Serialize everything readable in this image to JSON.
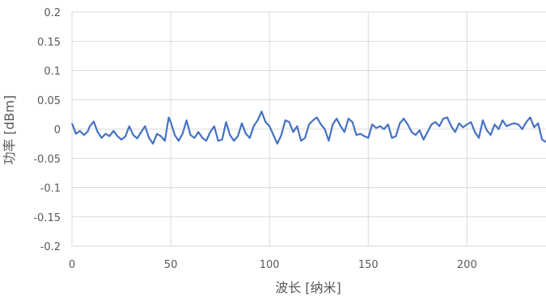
{
  "chart_data": {
    "type": "line",
    "xlabel": "波长 [纳米]",
    "ylabel": "功率 [dBm]",
    "xlim": [
      0,
      240
    ],
    "ylim": [
      -0.2,
      0.2
    ],
    "grid": true,
    "x_ticks": [
      0,
      50,
      100,
      150,
      200
    ],
    "x_tick_labels": [
      "0",
      "50",
      "100",
      "150",
      "200"
    ],
    "y_ticks": [
      0.2,
      0.15,
      0.1,
      0.05,
      0,
      -0.05,
      -0.1,
      -0.15,
      -0.2
    ],
    "y_tick_labels": [
      "0.2",
      "0.15",
      "0.1",
      "0.05",
      "0",
      "-0.05",
      "-0.1",
      "-0.15",
      "-0.2"
    ],
    "series": [
      {
        "color": "#4472c4",
        "x": [
          0,
          2,
          4,
          6,
          8,
          9,
          11,
          13,
          15,
          17,
          19,
          21,
          23,
          25,
          27,
          29,
          31,
          33,
          35,
          37,
          39,
          41,
          43,
          45,
          47,
          49,
          50,
          52,
          54,
          56,
          58,
          60,
          62,
          64,
          66,
          68,
          70,
          72,
          74,
          76,
          78,
          80,
          82,
          84,
          86,
          88,
          90,
          92,
          94,
          96,
          98,
          100,
          102,
          104,
          106,
          108,
          110,
          112,
          114,
          116,
          118,
          120,
          122,
          124,
          126,
          128,
          130,
          132,
          134,
          136,
          138,
          140,
          142,
          144,
          146,
          148,
          150,
          152,
          154,
          156,
          158,
          160,
          162,
          164,
          166,
          168,
          170,
          172,
          174,
          176,
          178,
          180,
          182,
          184,
          186,
          188,
          190,
          192,
          194,
          196,
          198,
          200,
          202,
          204,
          206,
          208,
          210,
          212,
          214,
          216,
          218,
          220,
          222,
          224,
          226,
          228,
          230,
          232,
          234,
          236,
          238,
          240
        ],
        "y": [
          0.01,
          -0.008,
          -0.003,
          -0.01,
          -0.004,
          0.005,
          0.013,
          -0.005,
          -0.015,
          -0.008,
          -0.012,
          -0.003,
          -0.012,
          -0.018,
          -0.013,
          0.005,
          -0.01,
          -0.016,
          -0.005,
          0.005,
          -0.015,
          -0.025,
          -0.008,
          -0.012,
          -0.02,
          0.02,
          0.012,
          -0.01,
          -0.02,
          -0.008,
          0.015,
          -0.01,
          -0.015,
          -0.005,
          -0.015,
          -0.02,
          -0.005,
          0.005,
          -0.02,
          -0.018,
          0.012,
          -0.01,
          -0.02,
          -0.012,
          0.01,
          -0.008,
          -0.015,
          0.005,
          0.015,
          0.03,
          0.012,
          0.005,
          -0.01,
          -0.025,
          -0.01,
          0.015,
          0.012,
          -0.005,
          0.005,
          -0.02,
          -0.015,
          0.008,
          0.015,
          0.02,
          0.008,
          0.0,
          -0.02,
          0.008,
          0.018,
          0.005,
          -0.005,
          0.018,
          0.012,
          -0.01,
          -0.008,
          -0.012,
          -0.015,
          0.008,
          0.002,
          0.005,
          0.0,
          0.008,
          -0.015,
          -0.012,
          0.01,
          0.018,
          0.008,
          -0.005,
          -0.01,
          -0.002,
          -0.018,
          -0.005,
          0.008,
          0.012,
          0.005,
          0.018,
          0.02,
          0.005,
          -0.005,
          0.01,
          0.003,
          0.008,
          0.012,
          -0.005,
          -0.015,
          0.015,
          -0.002,
          -0.01,
          0.008,
          0.0,
          0.015,
          0.005,
          0.008,
          0.01,
          0.008,
          0.0,
          0.012,
          0.02,
          0.003,
          0.01,
          -0.018,
          -0.022
        ]
      }
    ]
  }
}
